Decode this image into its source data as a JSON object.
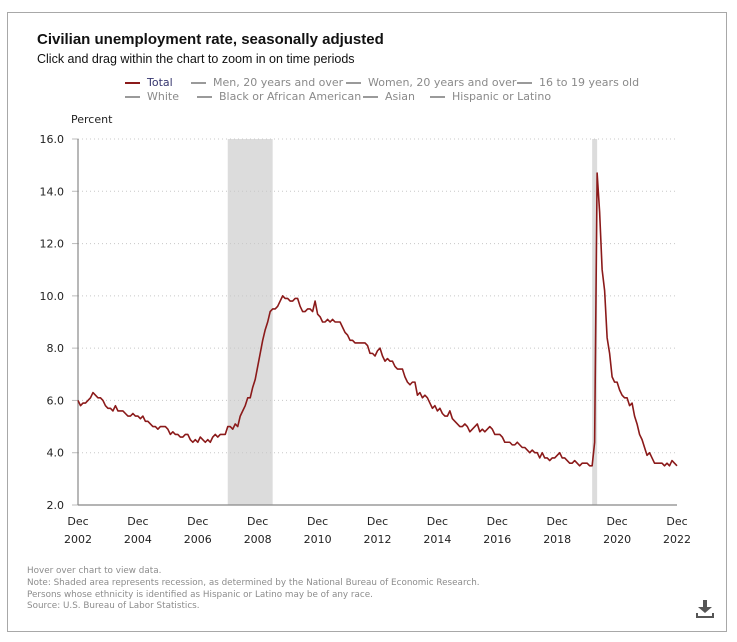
{
  "title": "Civilian unemployment rate, seasonally adjusted",
  "subtitle": "Click and drag within the chart to zoom in on time periods",
  "legend": [
    {
      "label": "Total",
      "active": true
    },
    {
      "label": "Men, 20 years and over",
      "active": false
    },
    {
      "label": "Women, 20 years and over",
      "active": false
    },
    {
      "label": "16 to 19 years old",
      "active": false
    },
    {
      "label": "White",
      "active": false
    },
    {
      "label": "Black or African American",
      "active": false
    },
    {
      "label": "Asian",
      "active": false
    },
    {
      "label": "Hispanic or Latino",
      "active": false
    }
  ],
  "notes": [
    "Hover over chart to view data.",
    "Note: Shaded area represents recession, as determined by the National Bureau of Economic Research.",
    "Persons whose ethnicity is identified as Hispanic or Latino may be of any race.",
    "Source: U.S. Bureau of Labor Statistics."
  ],
  "download_icon": "download-icon",
  "colors": {
    "series": "#8b1a1a",
    "recession": "#dcdcdc",
    "grid": "#c8c8c8",
    "axis": "#888888"
  },
  "chart_data": {
    "type": "line",
    "title": "Civilian unemployment rate, seasonally adjusted",
    "xlabel": "",
    "ylabel": "Percent",
    "ylim": [
      2.0,
      16.0
    ],
    "yticks": [
      "2.0",
      "4.0",
      "6.0",
      "8.0",
      "10.0",
      "12.0",
      "14.0",
      "16.0"
    ],
    "xticks": [
      {
        "month": "Dec",
        "year": "2002"
      },
      {
        "month": "Dec",
        "year": "2004"
      },
      {
        "month": "Dec",
        "year": "2006"
      },
      {
        "month": "Dec",
        "year": "2008"
      },
      {
        "month": "Dec",
        "year": "2010"
      },
      {
        "month": "Dec",
        "year": "2012"
      },
      {
        "month": "Dec",
        "year": "2014"
      },
      {
        "month": "Dec",
        "year": "2016"
      },
      {
        "month": "Dec",
        "year": "2018"
      },
      {
        "month": "Dec",
        "year": "2020"
      },
      {
        "month": "Dec",
        "year": "2022"
      }
    ],
    "x_start": "Dec 2002",
    "x_end": "Dec 2022",
    "grid": true,
    "legend_position": "top",
    "recessions": [
      {
        "start": "Dec 2007",
        "end": "Jun 2009"
      },
      {
        "start": "Feb 2020",
        "end": "Apr 2020"
      }
    ],
    "series": [
      {
        "name": "Total",
        "start": "Dec 2002",
        "frequency": "monthly",
        "values": [
          6.0,
          5.8,
          5.9,
          5.9,
          6.0,
          6.1,
          6.3,
          6.2,
          6.1,
          6.1,
          6.0,
          5.8,
          5.7,
          5.7,
          5.6,
          5.8,
          5.6,
          5.6,
          5.6,
          5.5,
          5.4,
          5.4,
          5.5,
          5.4,
          5.4,
          5.3,
          5.4,
          5.2,
          5.2,
          5.1,
          5.0,
          5.0,
          4.9,
          5.0,
          5.0,
          5.0,
          4.9,
          4.7,
          4.8,
          4.7,
          4.7,
          4.6,
          4.6,
          4.7,
          4.7,
          4.5,
          4.4,
          4.5,
          4.4,
          4.6,
          4.5,
          4.4,
          4.5,
          4.4,
          4.6,
          4.7,
          4.6,
          4.7,
          4.7,
          4.7,
          5.0,
          5.0,
          4.9,
          5.1,
          5.0,
          5.4,
          5.6,
          5.8,
          6.1,
          6.1,
          6.5,
          6.8,
          7.3,
          7.8,
          8.3,
          8.7,
          9.0,
          9.4,
          9.5,
          9.5,
          9.6,
          9.8,
          10.0,
          9.9,
          9.9,
          9.8,
          9.8,
          9.9,
          9.9,
          9.6,
          9.4,
          9.4,
          9.5,
          9.5,
          9.4,
          9.8,
          9.3,
          9.2,
          9.0,
          9.0,
          9.1,
          9.0,
          9.1,
          9.0,
          9.0,
          9.0,
          8.8,
          8.6,
          8.5,
          8.3,
          8.3,
          8.2,
          8.2,
          8.2,
          8.2,
          8.2,
          8.1,
          7.8,
          7.8,
          7.7,
          7.9,
          8.0,
          7.7,
          7.5,
          7.6,
          7.5,
          7.5,
          7.3,
          7.2,
          7.2,
          7.2,
          6.9,
          6.7,
          6.6,
          6.7,
          6.7,
          6.2,
          6.3,
          6.1,
          6.2,
          6.1,
          5.9,
          5.7,
          5.8,
          5.6,
          5.7,
          5.5,
          5.4,
          5.4,
          5.6,
          5.3,
          5.2,
          5.1,
          5.0,
          5.0,
          5.1,
          5.0,
          4.8,
          4.9,
          5.0,
          5.1,
          4.8,
          4.9,
          4.8,
          4.9,
          5.0,
          4.9,
          4.7,
          4.7,
          4.7,
          4.6,
          4.4,
          4.4,
          4.4,
          4.3,
          4.3,
          4.4,
          4.3,
          4.2,
          4.2,
          4.1,
          4.0,
          4.1,
          4.0,
          4.0,
          3.8,
          4.0,
          3.8,
          3.8,
          3.7,
          3.8,
          3.8,
          3.9,
          4.0,
          3.8,
          3.8,
          3.7,
          3.6,
          3.6,
          3.7,
          3.6,
          3.5,
          3.6,
          3.6,
          3.6,
          3.5,
          3.5,
          4.4,
          14.7,
          13.2,
          11.0,
          10.2,
          8.4,
          7.8,
          6.9,
          6.7,
          6.7,
          6.4,
          6.2,
          6.1,
          6.1,
          5.8,
          5.9,
          5.4,
          5.1,
          4.7,
          4.5,
          4.2,
          3.9,
          4.0,
          3.8,
          3.6,
          3.6,
          3.6,
          3.6,
          3.5,
          3.6,
          3.5,
          3.7,
          3.6,
          3.5
        ]
      }
    ]
  }
}
